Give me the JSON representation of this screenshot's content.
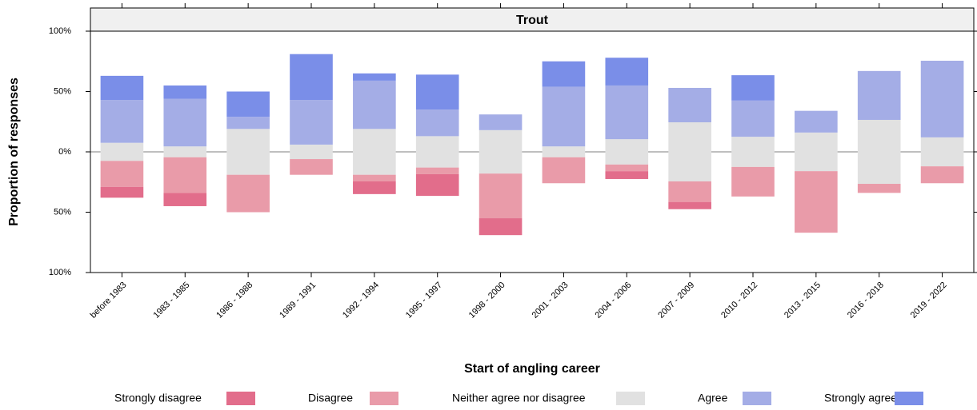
{
  "chart_data": {
    "type": "diverging-bar",
    "title": "Trout",
    "x_label": "Start of angling career",
    "y_label": "Proportion of responses",
    "categories": [
      "before 1983",
      "1983 - 1985",
      "1986 - 1988",
      "1989 - 1991",
      "1992 - 1994",
      "1995 - 1997",
      "1998 - 2000",
      "2001 - 2003",
      "2004 - 2006",
      "2007 - 2009",
      "2010 - 2012",
      "2013 - 2015",
      "2016 - 2018",
      "2019 - 2022"
    ],
    "series": [
      {
        "name": "Strongly disagree",
        "color": "#e26d8b",
        "values": [
          9,
          11,
          0,
          0,
          10.5,
          18,
          14,
          0,
          6.5,
          6,
          0,
          0,
          0,
          0
        ]
      },
      {
        "name": "Disagree",
        "color": "#e99ba9",
        "values": [
          21.5,
          29.5,
          31,
          13,
          5.5,
          5.5,
          37,
          21.5,
          5.5,
          17,
          24.5,
          51,
          7.5,
          14
        ]
      },
      {
        "name": "Neither agree nor disagree",
        "color": "#e1e1e1",
        "values": [
          15,
          9,
          38,
          12,
          38,
          26,
          36,
          9,
          21,
          49,
          25,
          32,
          53,
          24
        ]
      },
      {
        "name": "Agree",
        "color": "#a4ade6",
        "values": [
          35.5,
          39.5,
          10,
          37,
          40,
          22,
          13,
          49.5,
          44.5,
          28.5,
          30,
          18,
          40.5,
          63.5
        ]
      },
      {
        "name": "Strongly agree",
        "color": "#7a8ee8",
        "values": [
          20,
          11,
          21,
          38,
          6,
          29,
          0,
          21,
          23,
          0,
          21,
          0,
          0,
          0
        ]
      }
    ],
    "ylim": [
      -100,
      100
    ],
    "yticks": [
      {
        "value": -100,
        "label": "100%"
      },
      {
        "value": -50,
        "label": "50%"
      },
      {
        "value": 0,
        "label": "0%"
      },
      {
        "value": 50,
        "label": "50%"
      },
      {
        "value": 100,
        "label": "100%"
      }
    ]
  }
}
